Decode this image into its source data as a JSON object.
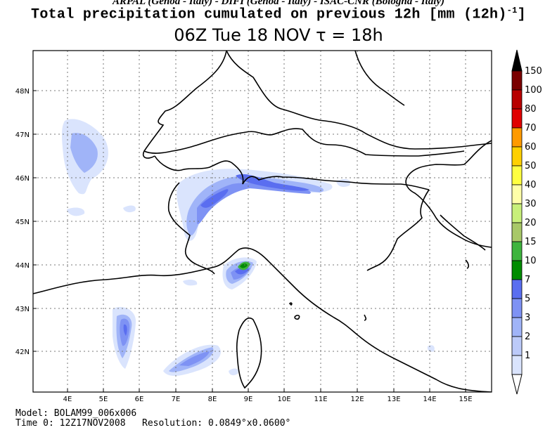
{
  "header": {
    "credits": "ARPAL (Genoa - Italy)  -  DIFI (Genoa - Italy)  -  ISAC-CNR (Bologna - Italy)",
    "title": "Total precipitation cumulated on previous 12h [mm (12h)",
    "title_sup": "-1",
    "title_close": "]",
    "subtitle": "06Z Tue 18 NOV   τ = 18h"
  },
  "map": {
    "lon_labels": [
      "4E",
      "5E",
      "6E",
      "7E",
      "8E",
      "9E",
      "10E",
      "11E",
      "12E",
      "13E",
      "14E",
      "15E"
    ],
    "lat_labels": [
      "48N",
      "47N",
      "46N",
      "45N",
      "44N",
      "43N",
      "42N"
    ]
  },
  "legend": {
    "levels": [
      {
        "label": "150",
        "color": "#7a0000"
      },
      {
        "label": "100",
        "color": "#b80000"
      },
      {
        "label": "80",
        "color": "#e00000"
      },
      {
        "label": "70",
        "color": "#ff9a00"
      },
      {
        "label": "60",
        "color": "#ffd000"
      },
      {
        "label": "50",
        "color": "#ffff40"
      },
      {
        "label": "40",
        "color": "#ffffa8"
      },
      {
        "label": "30",
        "color": "#c8f07a"
      },
      {
        "label": "20",
        "color": "#a8c868"
      },
      {
        "label": "15",
        "color": "#3eb43e"
      },
      {
        "label": "10",
        "color": "#008c00"
      },
      {
        "label": "7",
        "color": "#5a6ef0"
      },
      {
        "label": "5",
        "color": "#7e92f4"
      },
      {
        "label": "3",
        "color": "#a0b4f8"
      },
      {
        "label": "2",
        "color": "#bccaf9"
      },
      {
        "label": "1",
        "color": "#dae4fd"
      }
    ],
    "top_color": "#000000"
  },
  "footer": {
    "model": "Model: BOLAM99_006x006",
    "time0": "Time 0: 12Z17NOV2008",
    "resolution": "Resolution: 0.0849°x0.0600°"
  }
}
